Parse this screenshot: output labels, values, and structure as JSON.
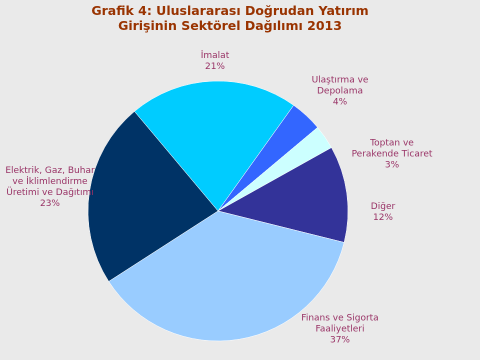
{
  "chart_data": {
    "type": "pie",
    "title": "Grafik 4: Uluslararası Doğrudan Yatırım Girişinin Sektörel Dağılımı 2013",
    "categories": [
      "İmalat",
      "Ulaştırma ve Depolama",
      "Toptan ve Perakende Ticaret",
      "Diğer",
      "Finans ve Sigorta Faaliyetleri",
      "Elektrik, Gaz, Buhar ve İklimlendirme Üretimi ve Dağıtımı"
    ],
    "values": [
      21,
      4,
      3,
      12,
      37,
      23
    ],
    "value_labels": [
      "21%",
      "4%",
      "3%",
      "12%",
      "37%",
      "23%"
    ],
    "colors": [
      "#00ccff",
      "#3366ff",
      "#ccffff",
      "#333399",
      "#99ccff",
      "#003366"
    ]
  }
}
